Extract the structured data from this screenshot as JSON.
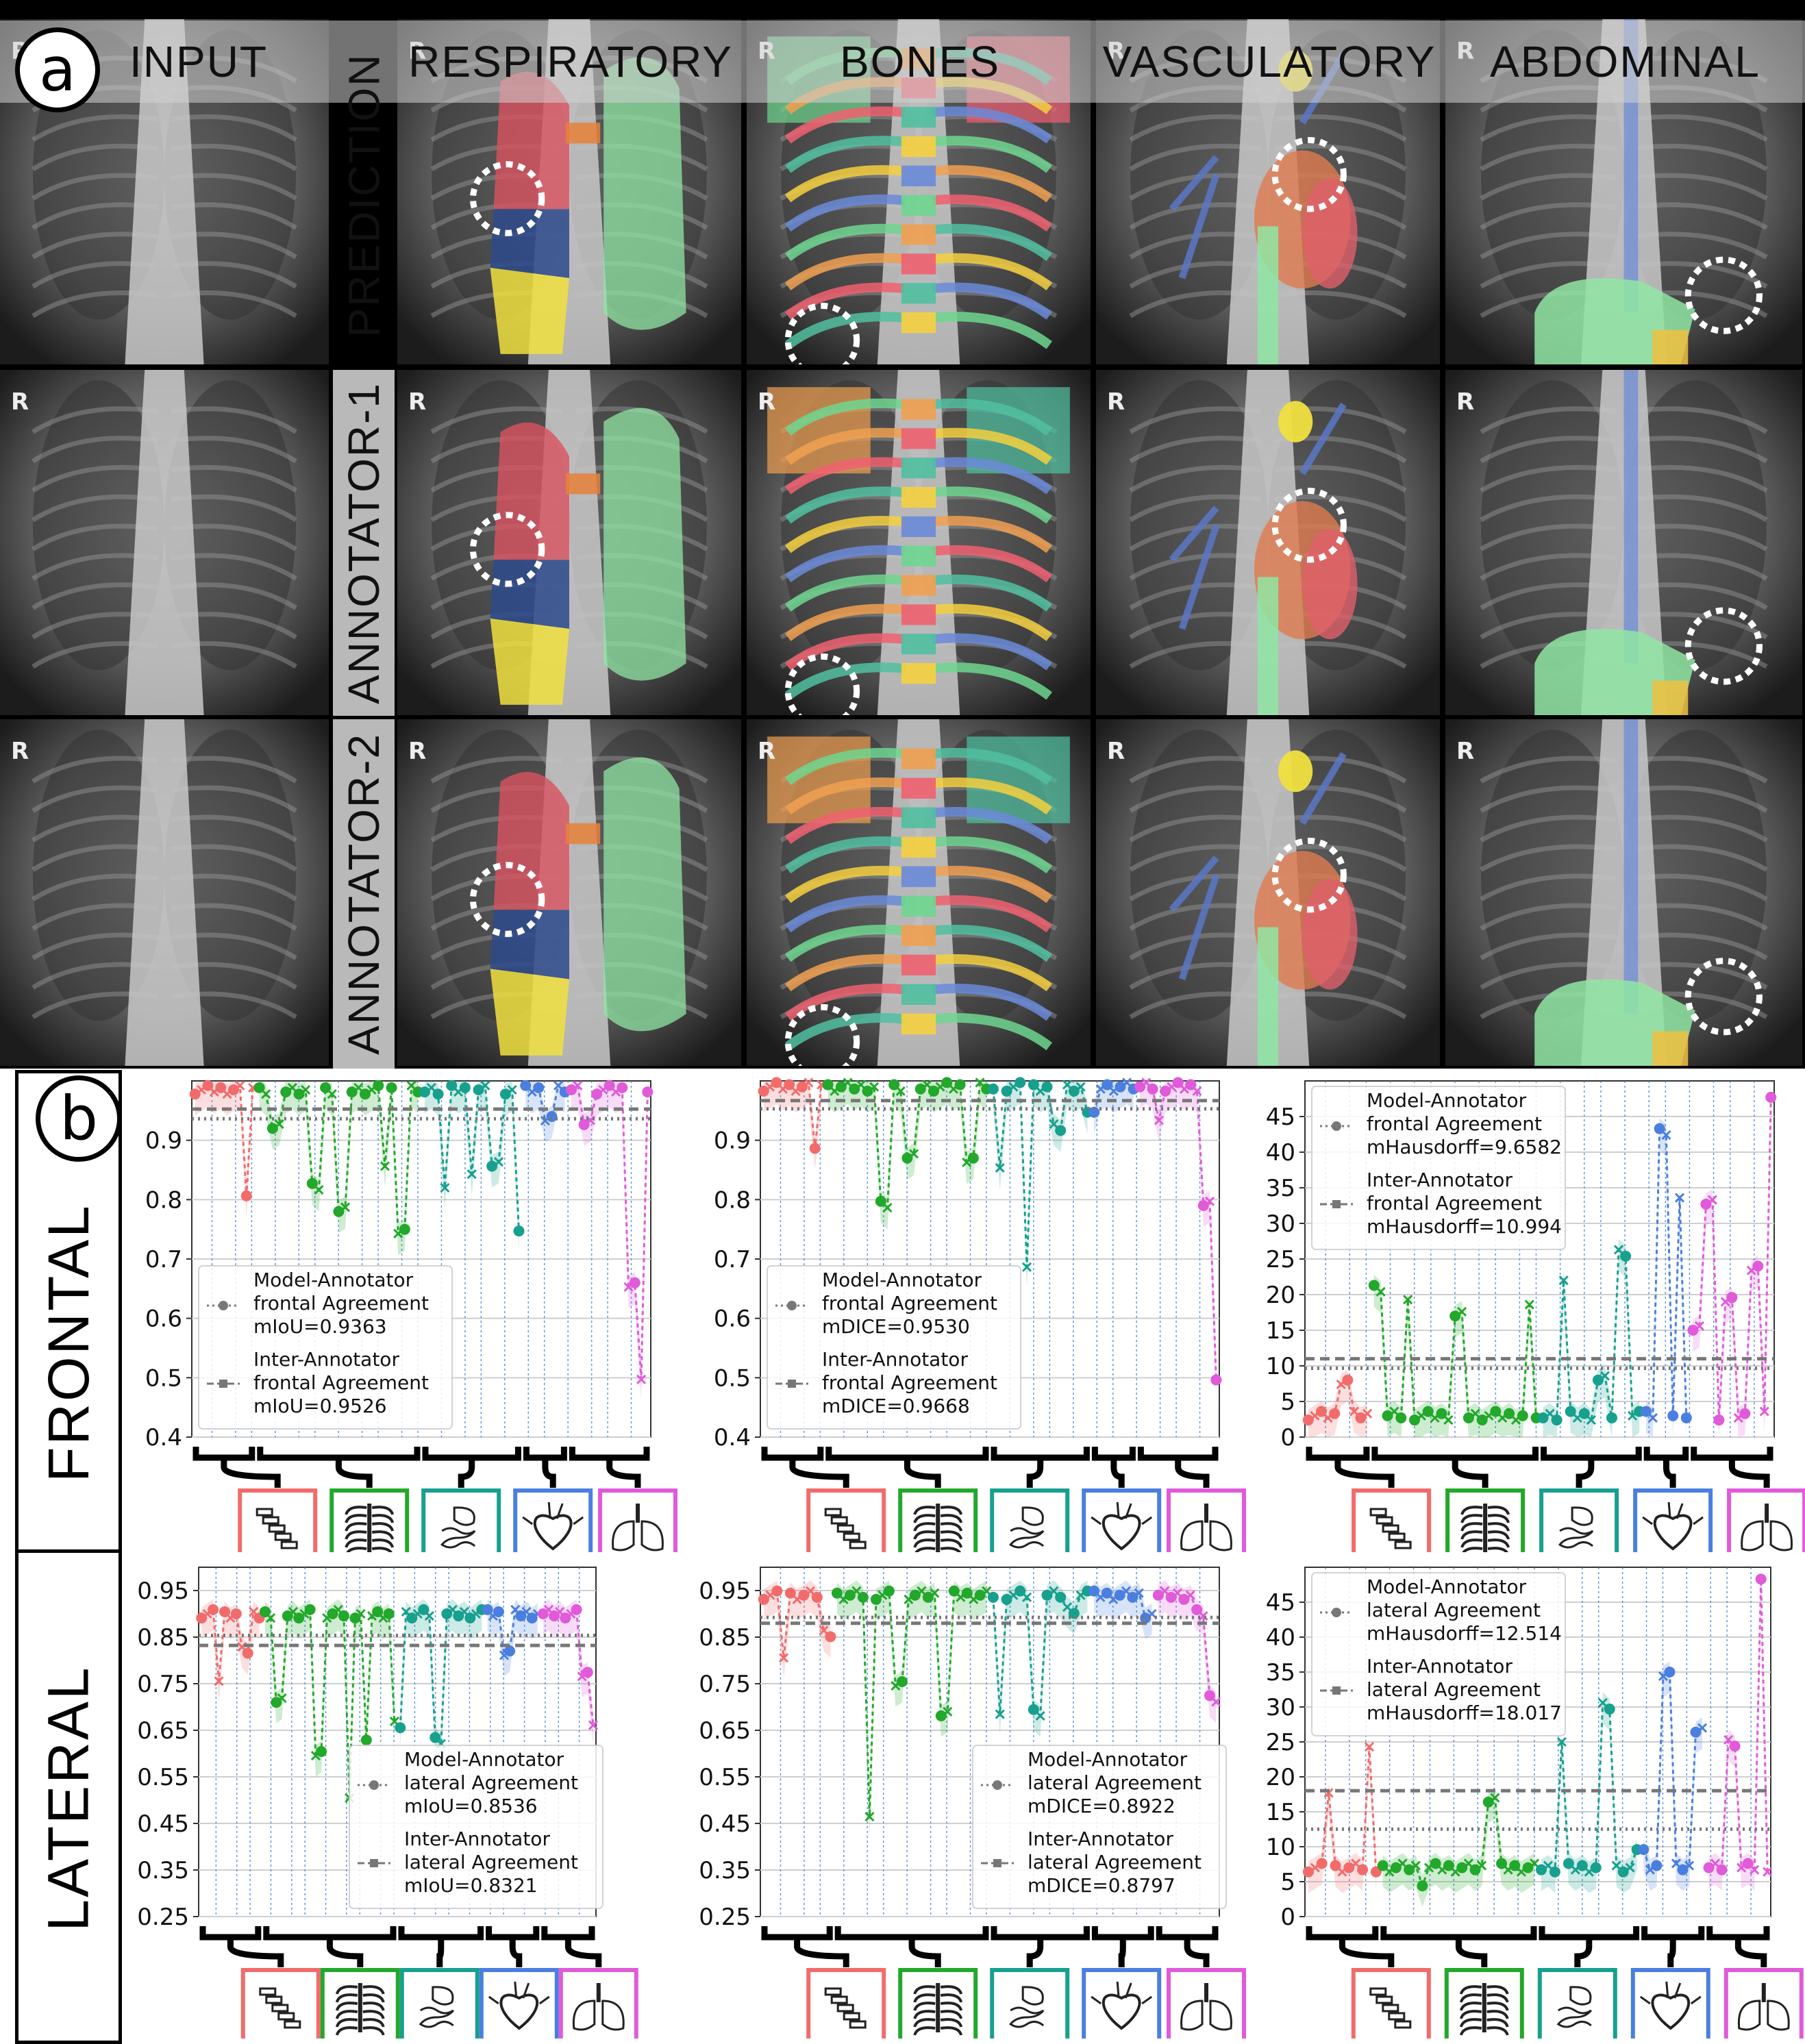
{
  "panel_a": {
    "badge": "a",
    "columns": [
      "INPUT",
      "RESPIRATORY",
      "BONES",
      "VASCULATORY",
      "ABDOMINAL"
    ],
    "rows": [
      "PREDICTION",
      "ANNOTATOR-1",
      "ANNOTATOR-2"
    ],
    "marker": "R"
  },
  "panel_b": {
    "badge": "b",
    "row_labels": [
      "FRONTAL",
      "LATERAL"
    ],
    "colors": {
      "bones": "#f26b6b",
      "ribs": "#22a82a",
      "abdominal": "#17a08e",
      "vascular": "#4a7fe0",
      "respiratory": "#e05ad9"
    }
  },
  "chart_data": [
    {
      "type": "line",
      "title": "Frontal mIoU",
      "ylim": [
        0.4,
        1.0
      ],
      "yticks": [
        "0.4",
        "0.5",
        "0.6",
        "0.7",
        "0.8",
        "0.9"
      ],
      "legend": [
        "Model-Annotator",
        "frontal Agreement",
        "mIoU=0.9363",
        "Inter-Annotator",
        "frontal Agreement",
        "mIoU=0.9526"
      ],
      "legend_position": "lower-left",
      "means": {
        "model": 0.9363,
        "inter": 0.9526
      },
      "groups": [
        "bones",
        "ribs",
        "abdominal",
        "vascular",
        "respiratory"
      ],
      "profile": {
        "base": 0.985,
        "dips": [
          [
            0.12,
            0.81
          ],
          [
            0.18,
            0.92
          ],
          [
            0.27,
            0.82
          ],
          [
            0.33,
            0.78
          ],
          [
            0.42,
            0.86
          ],
          [
            0.46,
            0.75
          ],
          [
            0.55,
            0.82
          ],
          [
            0.61,
            0.85
          ],
          [
            0.66,
            0.86
          ],
          [
            0.71,
            0.74
          ],
          [
            0.78,
            0.94
          ],
          [
            0.86,
            0.93
          ],
          [
            0.96,
            0.66
          ],
          [
            0.98,
            0.49
          ]
        ]
      }
    },
    {
      "type": "line",
      "title": "Frontal mDICE",
      "ylim": [
        0.4,
        1.0
      ],
      "yticks": [
        "0.4",
        "0.5",
        "0.6",
        "0.7",
        "0.8",
        "0.9"
      ],
      "legend": [
        "Model-Annotator",
        "frontal Agreement",
        "mDICE=0.9530",
        "Inter-Annotator",
        "frontal Agreement",
        "mDICE=0.9668"
      ],
      "legend_position": "lower-left",
      "means": {
        "model": 0.953,
        "inter": 0.9668
      },
      "groups": [
        "bones",
        "ribs",
        "abdominal",
        "vascular",
        "respiratory"
      ],
      "profile": {
        "base": 0.99,
        "dips": [
          [
            0.12,
            0.89
          ],
          [
            0.27,
            0.79
          ],
          [
            0.33,
            0.87
          ],
          [
            0.46,
            0.87
          ],
          [
            0.52,
            0.85
          ],
          [
            0.58,
            0.69
          ],
          [
            0.65,
            0.92
          ],
          [
            0.72,
            0.94
          ],
          [
            0.87,
            0.93
          ],
          [
            0.97,
            0.79
          ],
          [
            0.99,
            0.5
          ]
        ]
      }
    },
    {
      "type": "line",
      "title": "Frontal mHausdorff",
      "ylim": [
        0,
        50
      ],
      "yticks": [
        "0",
        "5",
        "10",
        "15",
        "20",
        "25",
        "30",
        "35",
        "40",
        "45"
      ],
      "legend": [
        "Model-Annotator",
        "frontal Agreement",
        "mHausdorff=9.6582",
        "Inter-Annotator",
        "frontal Agreement",
        "mHausdorff=10.994"
      ],
      "legend_position": "upper-left",
      "means": {
        "model": 9.6582,
        "inter": 10.994
      },
      "groups": [
        "bones",
        "ribs",
        "abdominal",
        "vascular",
        "respiratory"
      ],
      "profile": {
        "base": 3,
        "dips": [
          [
            0.08,
            8
          ],
          [
            0.15,
            21
          ],
          [
            0.22,
            19
          ],
          [
            0.33,
            17
          ],
          [
            0.48,
            18
          ],
          [
            0.55,
            22
          ],
          [
            0.63,
            8
          ],
          [
            0.68,
            26
          ],
          [
            0.76,
            43
          ],
          [
            0.8,
            33
          ],
          [
            0.83,
            15
          ],
          [
            0.86,
            33
          ],
          [
            0.9,
            19
          ],
          [
            0.96,
            24
          ],
          [
            1.0,
            48
          ]
        ]
      }
    },
    {
      "type": "line",
      "title": "Lateral mIoU",
      "ylim": [
        0.25,
        1.0
      ],
      "yticks": [
        "0.25",
        "0.35",
        "0.45",
        "0.55",
        "0.65",
        "0.75",
        "0.85",
        "0.95"
      ],
      "legend": [
        "Model-Annotator",
        "lateral Agreement",
        "mIoU=0.8536",
        "Inter-Annotator",
        "lateral Agreement",
        "mIoU=0.8321"
      ],
      "legend_position": "lower-right",
      "means": {
        "model": 0.8536,
        "inter": 0.8321
      },
      "groups": [
        "bones",
        "ribs",
        "abdominal",
        "vascular",
        "respiratory"
      ],
      "profile": {
        "base": 0.9,
        "dips": [
          [
            0.05,
            0.76
          ],
          [
            0.12,
            0.82
          ],
          [
            0.2,
            0.71
          ],
          [
            0.3,
            0.6
          ],
          [
            0.38,
            0.5
          ],
          [
            0.42,
            0.62
          ],
          [
            0.5,
            0.66
          ],
          [
            0.6,
            0.63
          ],
          [
            0.68,
            0.9
          ],
          [
            0.78,
            0.82
          ],
          [
            0.9,
            0.9
          ],
          [
            0.97,
            0.77
          ],
          [
            0.99,
            0.67
          ]
        ]
      }
    },
    {
      "type": "line",
      "title": "Lateral mDICE",
      "ylim": [
        0.25,
        1.0
      ],
      "yticks": [
        "0.25",
        "0.35",
        "0.45",
        "0.55",
        "0.65",
        "0.75",
        "0.85",
        "0.95"
      ],
      "legend": [
        "Model-Annotator",
        "lateral Agreement",
        "mDICE=0.8922",
        "Inter-Annotator",
        "lateral Agreement",
        "mDICE=0.8797"
      ],
      "legend_position": "lower-right",
      "means": {
        "model": 0.8922,
        "inter": 0.8797
      },
      "groups": [
        "bones",
        "ribs",
        "abdominal",
        "vascular",
        "respiratory"
      ],
      "profile": {
        "base": 0.94,
        "dips": [
          [
            0.05,
            0.81
          ],
          [
            0.15,
            0.86
          ],
          [
            0.24,
            0.46
          ],
          [
            0.3,
            0.75
          ],
          [
            0.4,
            0.69
          ],
          [
            0.52,
            0.68
          ],
          [
            0.6,
            0.69
          ],
          [
            0.68,
            0.91
          ],
          [
            0.85,
            0.9
          ],
          [
            0.96,
            0.9
          ],
          [
            0.99,
            0.72
          ]
        ]
      }
    },
    {
      "type": "line",
      "title": "Lateral mHausdorff",
      "ylim": [
        0,
        50
      ],
      "yticks": [
        "0",
        "5",
        "10",
        "15",
        "20",
        "25",
        "30",
        "35",
        "40",
        "45"
      ],
      "legend": [
        "Model-Annotator",
        "lateral Agreement",
        "mHausdorff=12.514",
        "Inter-Annotator",
        "lateral Agreement",
        "mHausdorff=18.017"
      ],
      "legend_position": "upper-left",
      "means": {
        "model": 12.514,
        "inter": 18.017
      },
      "groups": [
        "bones",
        "ribs",
        "abdominal",
        "vascular",
        "respiratory"
      ],
      "profile": {
        "base": 7,
        "dips": [
          [
            0.05,
            18
          ],
          [
            0.14,
            24
          ],
          [
            0.25,
            5
          ],
          [
            0.4,
            17
          ],
          [
            0.55,
            25
          ],
          [
            0.65,
            30
          ],
          [
            0.72,
            9
          ],
          [
            0.78,
            35
          ],
          [
            0.85,
            27
          ],
          [
            0.92,
            25
          ],
          [
            0.98,
            48
          ]
        ]
      }
    }
  ]
}
